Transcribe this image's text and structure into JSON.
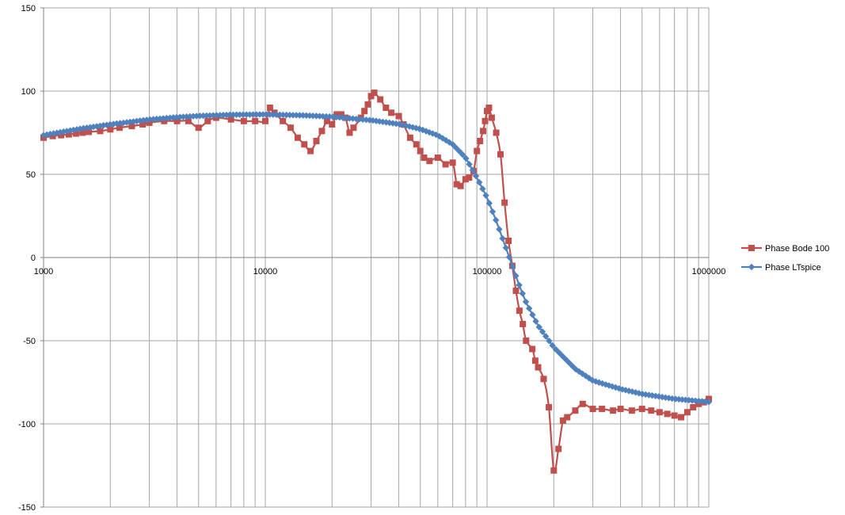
{
  "chart_data": {
    "type": "line",
    "title": "",
    "xlabel": "",
    "ylabel": "",
    "x_scale": "log",
    "xlim": [
      1000,
      1000000
    ],
    "ylim": [
      -150,
      150
    ],
    "y_ticks": [
      150,
      100,
      50,
      0,
      -50,
      -100,
      -150
    ],
    "x_ticks": [
      1000,
      10000,
      100000,
      1000000
    ],
    "x_tick_labels": [
      "1000",
      "10000",
      "100000",
      "1000000"
    ],
    "grid": true,
    "legend_position": "right",
    "series": [
      {
        "name": "Phase Bode 100",
        "color": "#c0504d",
        "marker": "square",
        "points": [
          [
            1000,
            72
          ],
          [
            1100,
            73
          ],
          [
            1200,
            73.5
          ],
          [
            1300,
            74
          ],
          [
            1400,
            74.5
          ],
          [
            1500,
            75
          ],
          [
            1600,
            75.5
          ],
          [
            1800,
            76
          ],
          [
            2000,
            77
          ],
          [
            2200,
            78
          ],
          [
            2500,
            79
          ],
          [
            2800,
            80
          ],
          [
            3000,
            81
          ],
          [
            3500,
            82
          ],
          [
            4000,
            82
          ],
          [
            4500,
            82
          ],
          [
            5000,
            78
          ],
          [
            5500,
            82
          ],
          [
            6000,
            84
          ],
          [
            7000,
            83
          ],
          [
            8000,
            82
          ],
          [
            9000,
            82
          ],
          [
            10000,
            82
          ],
          [
            10500,
            90
          ],
          [
            11000,
            87
          ],
          [
            12000,
            82
          ],
          [
            13000,
            78
          ],
          [
            14000,
            72
          ],
          [
            15000,
            68
          ],
          [
            16000,
            64
          ],
          [
            17000,
            70
          ],
          [
            18000,
            76
          ],
          [
            19000,
            82
          ],
          [
            20000,
            80
          ],
          [
            21000,
            86
          ],
          [
            22000,
            86
          ],
          [
            23000,
            84
          ],
          [
            24000,
            75
          ],
          [
            25000,
            78
          ],
          [
            27000,
            84
          ],
          [
            28000,
            88
          ],
          [
            29000,
            92
          ],
          [
            30000,
            97
          ],
          [
            31000,
            99
          ],
          [
            33000,
            95
          ],
          [
            35000,
            90
          ],
          [
            37000,
            87
          ],
          [
            40000,
            85
          ],
          [
            42000,
            80
          ],
          [
            45000,
            72
          ],
          [
            48000,
            68
          ],
          [
            50000,
            64
          ],
          [
            52000,
            60
          ],
          [
            55000,
            58
          ],
          [
            60000,
            60
          ],
          [
            65000,
            56
          ],
          [
            70000,
            57
          ],
          [
            73000,
            44
          ],
          [
            76000,
            43
          ],
          [
            80000,
            47
          ],
          [
            83000,
            48
          ],
          [
            87000,
            52
          ],
          [
            90000,
            64
          ],
          [
            93000,
            70
          ],
          [
            96000,
            76
          ],
          [
            98000,
            82
          ],
          [
            100000,
            88
          ],
          [
            102000,
            90
          ],
          [
            105000,
            84
          ],
          [
            110000,
            75
          ],
          [
            115000,
            62
          ],
          [
            120000,
            33
          ],
          [
            125000,
            10
          ],
          [
            130000,
            -5
          ],
          [
            135000,
            -20
          ],
          [
            140000,
            -32
          ],
          [
            145000,
            -40
          ],
          [
            150000,
            -50
          ],
          [
            160000,
            -55
          ],
          [
            165000,
            -62
          ],
          [
            170000,
            -66
          ],
          [
            180000,
            -73
          ],
          [
            190000,
            -90
          ],
          [
            200000,
            -128
          ],
          [
            210000,
            -115
          ],
          [
            220000,
            -98
          ],
          [
            230000,
            -96
          ],
          [
            250000,
            -92
          ],
          [
            270000,
            -88
          ],
          [
            300000,
            -91
          ],
          [
            330000,
            -91
          ],
          [
            370000,
            -92
          ],
          [
            400000,
            -91
          ],
          [
            450000,
            -92
          ],
          [
            500000,
            -91
          ],
          [
            550000,
            -92
          ],
          [
            600000,
            -93
          ],
          [
            650000,
            -94
          ],
          [
            700000,
            -95
          ],
          [
            750000,
            -96
          ],
          [
            800000,
            -93
          ],
          [
            850000,
            -90
          ],
          [
            900000,
            -88
          ],
          [
            950000,
            -87
          ],
          [
            1000000,
            -85
          ]
        ]
      },
      {
        "name": "Phase LTspice",
        "color": "#4f81bd",
        "marker": "diamond",
        "points": [
          [
            1000,
            73.5
          ],
          [
            1500,
            77.6
          ],
          [
            2000,
            80
          ],
          [
            3000,
            82.9
          ],
          [
            4000,
            84.3
          ],
          [
            5000,
            85.1
          ],
          [
            7000,
            85.8
          ],
          [
            10000,
            86
          ],
          [
            15000,
            85.4
          ],
          [
            20000,
            84.6
          ],
          [
            30000,
            82.5
          ],
          [
            40000,
            80.2
          ],
          [
            50000,
            77.2
          ],
          [
            60000,
            73.4
          ],
          [
            70000,
            68
          ],
          [
            80000,
            60
          ],
          [
            90000,
            48
          ],
          [
            100000,
            36
          ],
          [
            110000,
            22
          ],
          [
            120000,
            8
          ],
          [
            130000,
            -5
          ],
          [
            140000,
            -17
          ],
          [
            150000,
            -27
          ],
          [
            170000,
            -41
          ],
          [
            200000,
            -54
          ],
          [
            250000,
            -67
          ],
          [
            300000,
            -74
          ],
          [
            400000,
            -79
          ],
          [
            500000,
            -82
          ],
          [
            700000,
            -85
          ],
          [
            1000000,
            -86.8
          ]
        ]
      }
    ]
  }
}
